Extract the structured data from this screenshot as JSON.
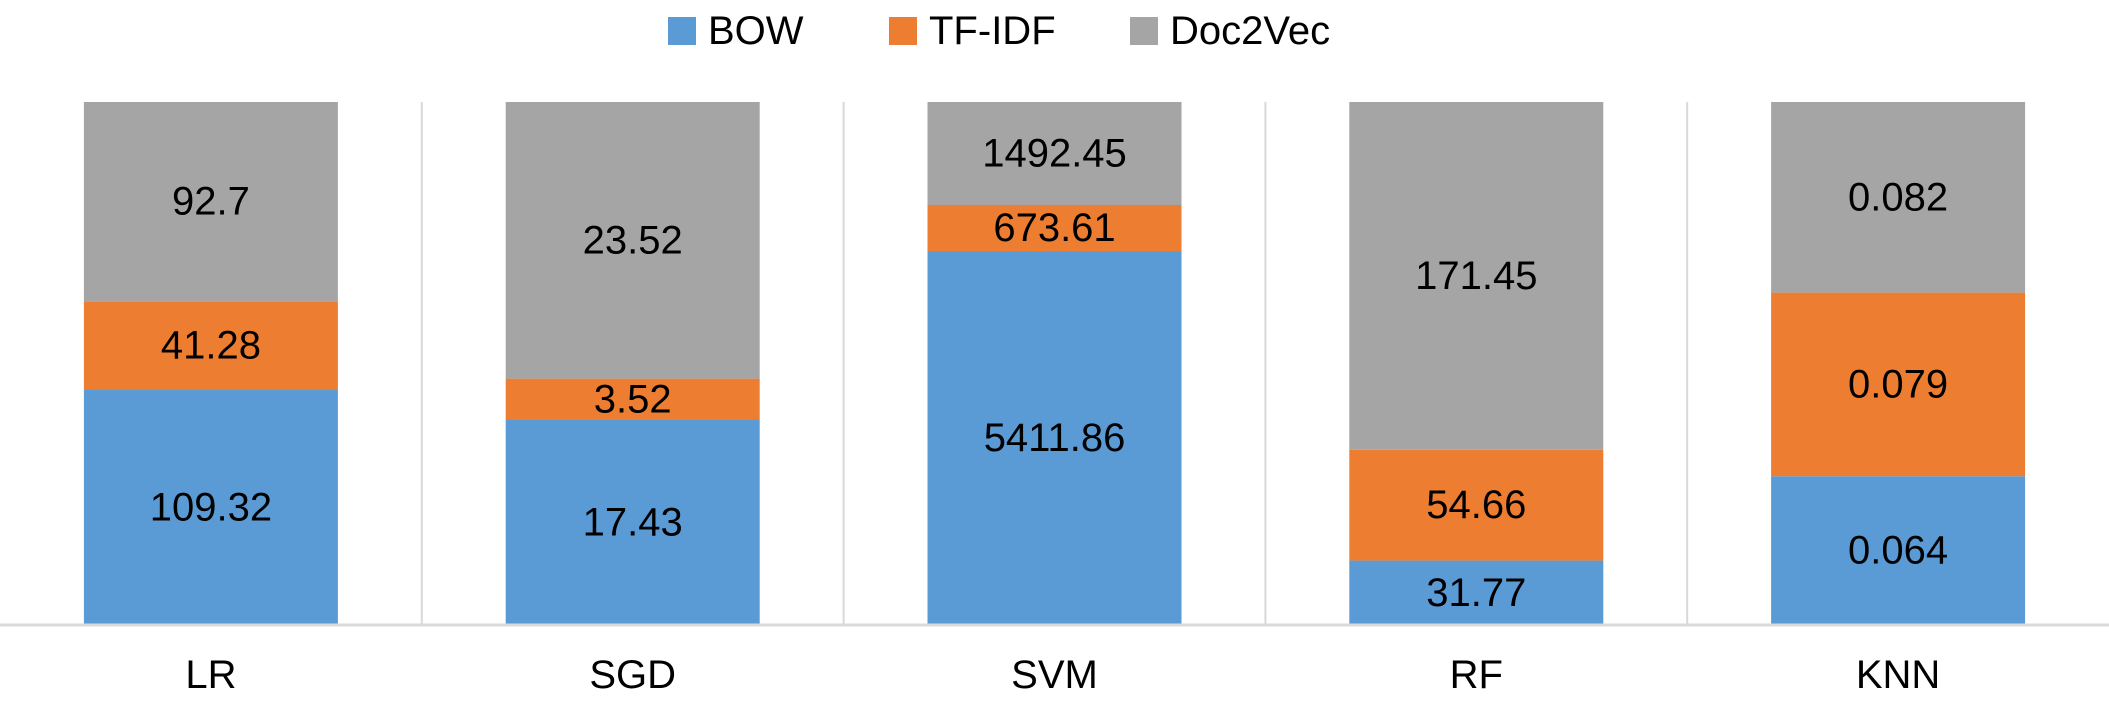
{
  "chart_data": {
    "type": "bar",
    "stacked": "percent",
    "title": "",
    "xlabel": "",
    "ylabel": "",
    "grid": false,
    "legend_position": "top-center",
    "categories": [
      "LR",
      "SGD",
      "SVM",
      "RF",
      "KNN"
    ],
    "series": [
      {
        "name": "BOW",
        "color": "#5B9BD5",
        "values": [
          109.32,
          17.43,
          5411.86,
          31.77,
          0.064
        ],
        "labels": [
          "109.32",
          "17.43",
          "5411.86",
          "31.77",
          "0.064"
        ]
      },
      {
        "name": "TF-IDF",
        "color": "#ED7D31",
        "values": [
          41.28,
          3.52,
          673.61,
          54.66,
          0.079
        ],
        "labels": [
          "41.28",
          "3.52",
          "673.61",
          "54.66",
          "0.079"
        ]
      },
      {
        "name": "Doc2Vec",
        "color": "#A5A5A5",
        "values": [
          92.7,
          23.52,
          1492.45,
          171.45,
          0.082
        ],
        "labels": [
          "92.7",
          "23.52",
          "1492.45",
          "171.45",
          "0.082"
        ]
      }
    ]
  }
}
